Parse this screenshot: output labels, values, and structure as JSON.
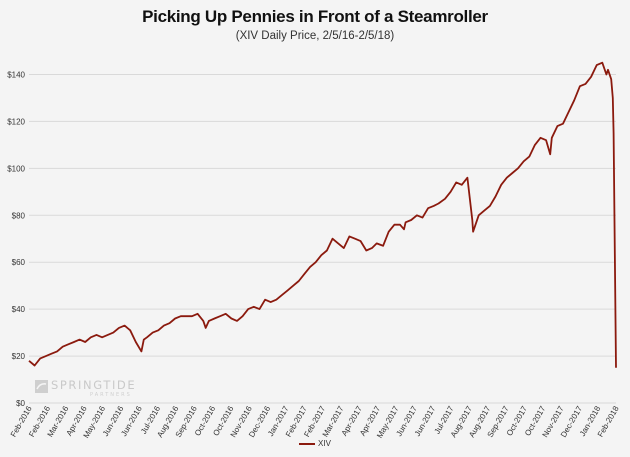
{
  "title": "Picking Up Pennies in Front of a Steamroller",
  "subtitle": "(XIV Daily Price, 2/5/16-2/5/18)",
  "brand": {
    "name": "SPRINGTIDE",
    "tagline": "PARTNERS"
  },
  "colors": {
    "line": "#8b1a0e",
    "grid": "#d9d9d9",
    "background": "#f4f4f4"
  },
  "chart_data": {
    "type": "line",
    "title": "Picking Up Pennies in Front of a Steamroller",
    "subtitle": "(XIV Daily Price, 2/5/16-2/5/18)",
    "xlabel": "",
    "ylabel": "",
    "ylim": [
      0,
      150
    ],
    "grid": true,
    "legend": "bottom-center",
    "y_ticks": [
      "$0",
      "$20",
      "$40",
      "$60",
      "$80",
      "$100",
      "$120",
      "$140"
    ],
    "x_ticks": [
      "Feb-2016",
      "Feb-2016",
      "Mar-2016",
      "Apr-2016",
      "May-2016",
      "Jun-2016",
      "Jun-2016",
      "Jul-2016",
      "Aug-2016",
      "Sep-2016",
      "Oct-2016",
      "Oct-2016",
      "Nov-2016",
      "Dec-2016",
      "Jan-2017",
      "Feb-2017",
      "Feb-2017",
      "Mar-2017",
      "Apr-2017",
      "Apr-2017",
      "May-2017",
      "Jun-2017",
      "Jun-2017",
      "Jul-2017",
      "Aug-2017",
      "Aug-2017",
      "Sep-2017",
      "Oct-2017",
      "Oct-2017",
      "Nov-2017",
      "Dec-2017",
      "Jan-2018",
      "Feb-2018"
    ],
    "series": [
      {
        "name": "XIV",
        "x": [
          "2016-02-05",
          "2016-02-12",
          "2016-02-19",
          "2016-02-26",
          "2016-03-04",
          "2016-03-11",
          "2016-03-18",
          "2016-03-25",
          "2016-04-01",
          "2016-04-08",
          "2016-04-15",
          "2016-04-22",
          "2016-04-29",
          "2016-05-06",
          "2016-05-13",
          "2016-05-20",
          "2016-05-27",
          "2016-06-03",
          "2016-06-10",
          "2016-06-17",
          "2016-06-24",
          "2016-06-27",
          "2016-07-01",
          "2016-07-08",
          "2016-07-15",
          "2016-07-22",
          "2016-07-29",
          "2016-08-05",
          "2016-08-12",
          "2016-08-19",
          "2016-08-26",
          "2016-09-02",
          "2016-09-09",
          "2016-09-12",
          "2016-09-16",
          "2016-09-23",
          "2016-09-30",
          "2016-10-07",
          "2016-10-14",
          "2016-10-21",
          "2016-10-28",
          "2016-11-04",
          "2016-11-11",
          "2016-11-18",
          "2016-11-25",
          "2016-12-02",
          "2016-12-09",
          "2016-12-16",
          "2016-12-23",
          "2016-12-30",
          "2017-01-06",
          "2017-01-13",
          "2017-01-20",
          "2017-01-27",
          "2017-02-03",
          "2017-02-10",
          "2017-02-17",
          "2017-02-24",
          "2017-03-03",
          "2017-03-10",
          "2017-03-17",
          "2017-03-24",
          "2017-03-31",
          "2017-04-07",
          "2017-04-13",
          "2017-04-21",
          "2017-04-28",
          "2017-05-05",
          "2017-05-12",
          "2017-05-17",
          "2017-05-19",
          "2017-05-26",
          "2017-06-02",
          "2017-06-09",
          "2017-06-16",
          "2017-06-23",
          "2017-06-29",
          "2017-07-07",
          "2017-07-14",
          "2017-07-21",
          "2017-07-28",
          "2017-08-04",
          "2017-08-10",
          "2017-08-11",
          "2017-08-18",
          "2017-08-25",
          "2017-09-01",
          "2017-09-08",
          "2017-09-15",
          "2017-09-22",
          "2017-09-29",
          "2017-10-06",
          "2017-10-13",
          "2017-10-20",
          "2017-10-27",
          "2017-11-03",
          "2017-11-10",
          "2017-11-15",
          "2017-11-17",
          "2017-11-24",
          "2017-12-01",
          "2017-12-08",
          "2017-12-15",
          "2017-12-22",
          "2017-12-29",
          "2018-01-05",
          "2018-01-12",
          "2018-01-19",
          "2018-01-24",
          "2018-01-26",
          "2018-01-30",
          "2018-02-01",
          "2018-02-02",
          "2018-02-05"
        ],
        "values": [
          18,
          16,
          19,
          20,
          21,
          22,
          24,
          25,
          26,
          27,
          26,
          28,
          29,
          28,
          29,
          30,
          32,
          33,
          31,
          26,
          22,
          27,
          28,
          30,
          31,
          33,
          34,
          36,
          37,
          37,
          37,
          38,
          35,
          32,
          35,
          36,
          37,
          38,
          36,
          35,
          37,
          40,
          41,
          40,
          44,
          43,
          44,
          46,
          48,
          50,
          52,
          55,
          58,
          60,
          63,
          65,
          70,
          68,
          66,
          71,
          70,
          69,
          65,
          66,
          68,
          67,
          73,
          76,
          76,
          74,
          77,
          78,
          80,
          79,
          83,
          84,
          85,
          87,
          90,
          94,
          93,
          96,
          78,
          73,
          80,
          82,
          84,
          88,
          93,
          96,
          98,
          100,
          103,
          105,
          110,
          113,
          112,
          106,
          113,
          118,
          119,
          124,
          129,
          135,
          136,
          139,
          144,
          145,
          140,
          142,
          138,
          130,
          115,
          15
        ]
      }
    ]
  }
}
